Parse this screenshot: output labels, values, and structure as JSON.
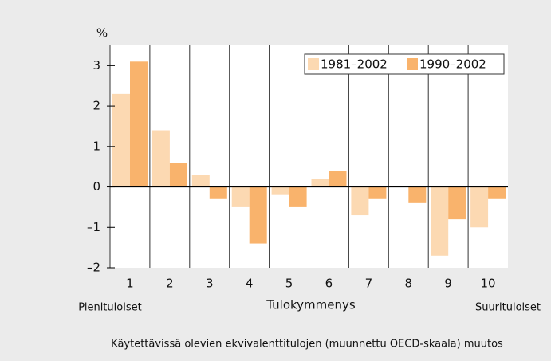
{
  "chart_data": {
    "type": "bar",
    "y_label": "%",
    "x_label": "Tulokymmenys",
    "annotations": [
      "Pienituloiset",
      "Suurituloiset"
    ],
    "caption": "Käytettävissä olevien ekvivalenttitulojen (muunnettu OECD-skaala) muutos",
    "categories": [
      "1",
      "2",
      "3",
      "4",
      "5",
      "6",
      "7",
      "8",
      "9",
      "10"
    ],
    "series": [
      {
        "name": "1981–2002",
        "color": "#fcd9b2",
        "values": [
          2.3,
          1.4,
          0.3,
          -0.5,
          -0.2,
          0.2,
          -0.7,
          0,
          -1.7,
          -1.0
        ]
      },
      {
        "name": "1990–2002",
        "color": "#f9b36c",
        "values": [
          3.1,
          0.6,
          -0.3,
          -1.4,
          -0.5,
          0.4,
          -0.3,
          -0.4,
          -0.8,
          -0.3
        ]
      }
    ],
    "ylim": [
      -2,
      3.5
    ],
    "yticks": [
      {
        "value": -2,
        "label": "–2"
      },
      {
        "value": -1,
        "label": "–1"
      },
      0,
      1,
      2,
      3
    ],
    "legend": "upper right"
  }
}
